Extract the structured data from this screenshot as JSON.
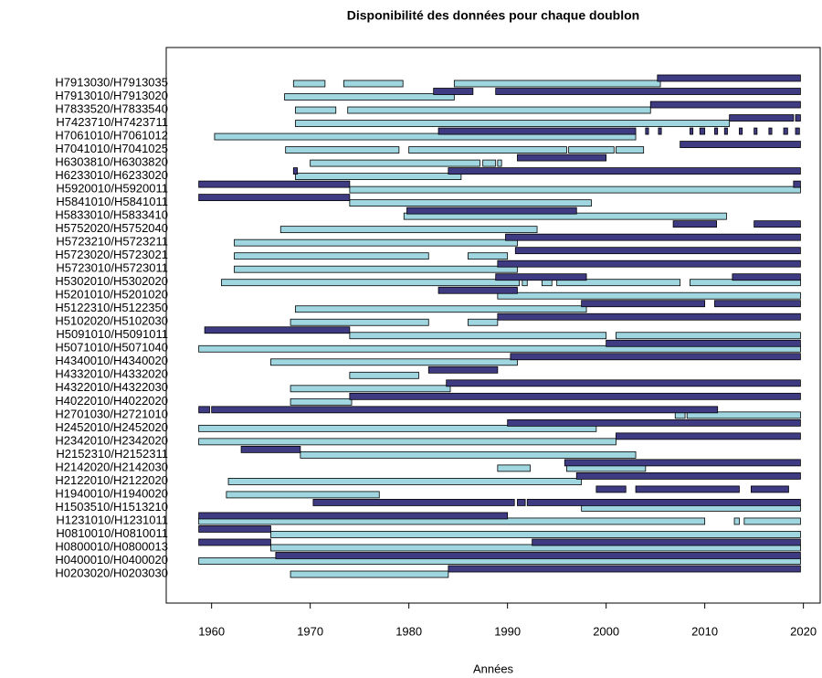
{
  "chart_data": {
    "type": "gantt",
    "title": "Disponibilité des données pour chaque doublon",
    "x_label": "Années",
    "xlim": [
      1955.4,
      2021.7
    ],
    "xticks": [
      1960,
      1970,
      1980,
      1990,
      2000,
      2010,
      2020
    ],
    "color_first": "#9fd6e0",
    "color_second": "#3f3b82",
    "rows": [
      {
        "label": "H7913030/H7913035",
        "first": [
          [
            1968.3,
            1971.5
          ],
          [
            1973.4,
            1979.4
          ],
          [
            1984.6,
            2005.5
          ]
        ],
        "second": [
          [
            2005.2,
            2019.7
          ]
        ]
      },
      {
        "label": "H7913010/H7913020",
        "first": [
          [
            1967.4,
            1984.6
          ]
        ],
        "second": [
          [
            1982.5,
            1986.5
          ],
          [
            1988.8,
            2019.7
          ]
        ]
      },
      {
        "label": "H7833520/H7833540",
        "first": [
          [
            1968.5,
            1972.6
          ],
          [
            1973.8,
            2004.5
          ]
        ],
        "second": [
          [
            2004.5,
            2019.7
          ]
        ]
      },
      {
        "label": "H7423710/H7423711",
        "first": [
          [
            1968.5,
            2012.5
          ]
        ],
        "second": [
          [
            2012.5,
            2019
          ],
          [
            2019.2,
            2019.7
          ]
        ]
      },
      {
        "label": "H7061010/H7061012",
        "first": [
          [
            1960.3,
            2003
          ]
        ],
        "second": [
          [
            1983,
            2003
          ],
          [
            2004,
            2004.3
          ],
          [
            2005.3,
            2005.6
          ],
          [
            2008.5,
            2008.8
          ],
          [
            2009.5,
            2010
          ],
          [
            2011,
            2011.3
          ],
          [
            2012,
            2012.3
          ],
          [
            2013.5,
            2013.8
          ],
          [
            2015,
            2015.3
          ],
          [
            2016.5,
            2016.8
          ],
          [
            2018,
            2018.4
          ],
          [
            2019.2,
            2019.6
          ]
        ]
      },
      {
        "label": "H7041010/H7041025",
        "first": [
          [
            1967.5,
            1979
          ],
          [
            1980,
            1996
          ],
          [
            1996.2,
            2000.8
          ],
          [
            2001,
            2003.8
          ]
        ],
        "second": [
          [
            2007.5,
            2019.7
          ]
        ]
      },
      {
        "label": "H6303810/H6303820",
        "first": [
          [
            1970,
            1987.2
          ],
          [
            1987.5,
            1988.8
          ],
          [
            1989,
            1989.4
          ]
        ],
        "second": [
          [
            1991,
            2000
          ]
        ]
      },
      {
        "label": "H6233010/H6233020",
        "first": [
          [
            1968.5,
            1985.3
          ]
        ],
        "second": [
          [
            1968.3,
            1968.7
          ],
          [
            1984,
            2019.7
          ]
        ]
      },
      {
        "label": "H5920010/H5920011",
        "first": [
          [
            1974,
            2019.7
          ]
        ],
        "second": [
          [
            1958.7,
            1974
          ],
          [
            2019,
            2019.7
          ]
        ]
      },
      {
        "label": "H5841010/H5841011",
        "first": [
          [
            1974,
            1998.5
          ]
        ],
        "second": [
          [
            1958.7,
            1974
          ]
        ]
      },
      {
        "label": "H5833010/H5833410",
        "first": [
          [
            1979.5,
            2012.2
          ]
        ],
        "second": [
          [
            1979.8,
            1997
          ]
        ]
      },
      {
        "label": "H5752020/H5752040",
        "first": [
          [
            1967,
            1993
          ]
        ],
        "second": [
          [
            2006.8,
            2011.2
          ],
          [
            2015,
            2019.7
          ]
        ]
      },
      {
        "label": "H5723210/H5723211",
        "first": [
          [
            1962.3,
            1991
          ]
        ],
        "second": [
          [
            1989.8,
            2019.7
          ]
        ]
      },
      {
        "label": "H5723020/H5723021",
        "first": [
          [
            1962.3,
            1982
          ],
          [
            1986,
            1990
          ]
        ],
        "second": [
          [
            1990.8,
            2019.7
          ]
        ]
      },
      {
        "label": "H5723010/H5723011",
        "first": [
          [
            1962.3,
            1991
          ]
        ],
        "second": [
          [
            1989,
            2019.7
          ]
        ]
      },
      {
        "label": "H5302010/H5302020",
        "first": [
          [
            1961,
            1991.2
          ],
          [
            1991.5,
            1992
          ],
          [
            1993.5,
            1994.5
          ],
          [
            1995,
            2007.5
          ],
          [
            2008.5,
            2019.7
          ]
        ],
        "second": [
          [
            1988.8,
            1998
          ],
          [
            2012.8,
            2019.7
          ]
        ]
      },
      {
        "label": "H5201010/H5201020",
        "first": [
          [
            1989,
            2019.7
          ]
        ],
        "second": [
          [
            1983,
            1991
          ]
        ]
      },
      {
        "label": "H5122310/H5122350",
        "first": [
          [
            1968.5,
            1998
          ]
        ],
        "second": [
          [
            1997.5,
            2010
          ],
          [
            2011,
            2019.7
          ]
        ]
      },
      {
        "label": "H5102020/H5102030",
        "first": [
          [
            1968,
            1982
          ],
          [
            1986,
            1989
          ]
        ],
        "second": [
          [
            1989,
            2019.7
          ]
        ]
      },
      {
        "label": "H5091010/H5091011",
        "first": [
          [
            1974,
            2000
          ],
          [
            2001,
            2019.7
          ]
        ],
        "second": [
          [
            1959.3,
            1974
          ]
        ]
      },
      {
        "label": "H5071010/H5071040",
        "first": [
          [
            1958.7,
            2019.7
          ]
        ],
        "second": [
          [
            2000,
            2019.7
          ]
        ]
      },
      {
        "label": "H4340010/H4340020",
        "first": [
          [
            1966,
            1991
          ]
        ],
        "second": [
          [
            1990.3,
            2019.7
          ]
        ]
      },
      {
        "label": "H4332010/H4332020",
        "first": [
          [
            1974,
            1981
          ]
        ],
        "second": [
          [
            1982,
            1989
          ]
        ]
      },
      {
        "label": "H4322010/H4322030",
        "first": [
          [
            1968,
            1984.2
          ]
        ],
        "second": [
          [
            1983.8,
            2019.7
          ]
        ]
      },
      {
        "label": "H4022010/H4022020",
        "first": [
          [
            1968,
            1974.2
          ]
        ],
        "second": [
          [
            1974,
            2019.7
          ]
        ]
      },
      {
        "label": "H2701030/H2721010",
        "first": [
          [
            2007,
            2008
          ],
          [
            2008.2,
            2019.7
          ]
        ],
        "second": [
          [
            1958.7,
            1959.8
          ],
          [
            1960,
            2011.3
          ]
        ]
      },
      {
        "label": "H2452010/H2452020",
        "first": [
          [
            1958.7,
            1999
          ]
        ],
        "second": [
          [
            1990,
            2019.7
          ]
        ]
      },
      {
        "label": "H2342010/H2342020",
        "first": [
          [
            1958.7,
            2001
          ]
        ],
        "second": [
          [
            2001,
            2019.7
          ]
        ]
      },
      {
        "label": "H2152310/H2152311",
        "first": [
          [
            1969,
            2003
          ]
        ],
        "second": [
          [
            1963,
            1969
          ]
        ]
      },
      {
        "label": "H2142020/H2142030",
        "first": [
          [
            1989,
            1992.3
          ],
          [
            1996,
            2004
          ]
        ],
        "second": [
          [
            1995.8,
            2019.7
          ]
        ]
      },
      {
        "label": "H2122010/H2122020",
        "first": [
          [
            1961.7,
            1997.5
          ]
        ],
        "second": [
          [
            1997,
            2019.7
          ]
        ]
      },
      {
        "label": "H1940010/H1940020",
        "first": [
          [
            1961.5,
            1977
          ]
        ],
        "second": [
          [
            1999,
            2002
          ],
          [
            2003,
            2013.5
          ],
          [
            2014.7,
            2018.5
          ]
        ]
      },
      {
        "label": "H1503510/H1513210",
        "first": [
          [
            1997.5,
            2019.7
          ]
        ],
        "second": [
          [
            1970.3,
            1990.7
          ],
          [
            1991,
            1991.8
          ],
          [
            1992,
            2019.7
          ]
        ]
      },
      {
        "label": "H1231010/H1231011",
        "first": [
          [
            1958.7,
            2010
          ],
          [
            2013,
            2013.5
          ],
          [
            2014,
            2019.7
          ]
        ],
        "second": [
          [
            1958.7,
            1990
          ]
        ]
      },
      {
        "label": "H0810010/H0810011",
        "first": [
          [
            1966,
            2019.7
          ]
        ],
        "second": [
          [
            1958.7,
            1966
          ]
        ]
      },
      {
        "label": "H0800010/H0800013",
        "first": [
          [
            1966,
            2019.7
          ]
        ],
        "second": [
          [
            1958.7,
            1966
          ],
          [
            1992.5,
            2019.7
          ]
        ]
      },
      {
        "label": "H0400010/H0400020",
        "first": [
          [
            1958.7,
            2019.7
          ]
        ],
        "second": [
          [
            1966.5,
            2019.7
          ]
        ]
      },
      {
        "label": "H0203020/H0203030",
        "first": [
          [
            1968,
            1984
          ]
        ],
        "second": [
          [
            1984,
            2019.7
          ]
        ]
      }
    ]
  }
}
